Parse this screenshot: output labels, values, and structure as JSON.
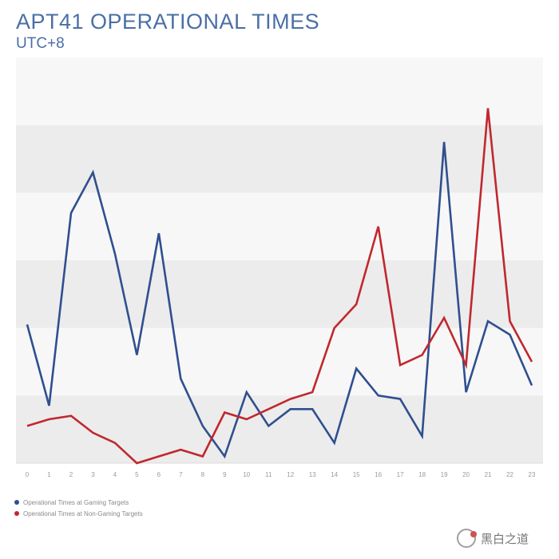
{
  "chart_data": {
    "type": "line",
    "title": "APT41 OPERATIONAL TIMES",
    "subtitle": "UTC+8",
    "x": [
      0,
      1,
      2,
      3,
      4,
      5,
      6,
      7,
      8,
      9,
      10,
      11,
      12,
      13,
      14,
      15,
      16,
      17,
      18,
      19,
      20,
      21,
      22,
      23
    ],
    "x_tick_labels": [
      "0",
      "1",
      "2",
      "3",
      "4",
      "5",
      "6",
      "7",
      "8",
      "9",
      "10",
      "11",
      "12",
      "13",
      "14",
      "15",
      "16",
      "17",
      "18",
      "19",
      "20",
      "21",
      "22",
      "23"
    ],
    "series": [
      {
        "name": "Operational Times at Gaming Targets",
        "color": "#2f4f8f",
        "values": [
          41,
          17,
          74,
          86,
          62,
          32,
          68,
          25,
          11,
          2,
          21,
          11,
          16,
          16,
          6,
          28,
          20,
          19,
          8,
          95,
          21,
          42,
          38,
          23
        ]
      },
      {
        "name": "Operational Times at Non-Gaming Targets",
        "color": "#c0282e",
        "values": [
          11,
          13,
          14,
          9,
          6,
          0,
          2,
          4,
          2,
          15,
          13,
          16,
          19,
          21,
          40,
          47,
          70,
          29,
          32,
          43,
          29,
          105,
          42,
          30
        ]
      }
    ],
    "ylim": [
      0,
      120
    ],
    "grid": "alternating horizontal bands",
    "legend": "bottom-left",
    "xlabel": "",
    "ylabel": ""
  },
  "watermark": {
    "text": "黑白之道",
    "icon": "circle-logo-icon"
  }
}
